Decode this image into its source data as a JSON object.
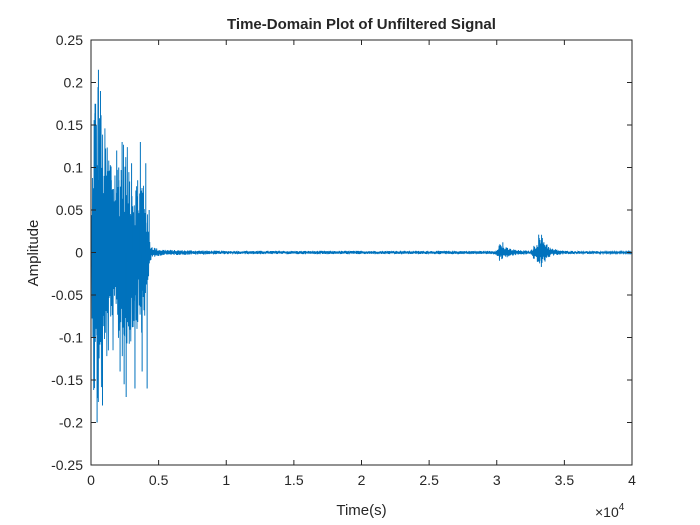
{
  "chart_data": {
    "type": "line",
    "title": "Time-Domain Plot of Unfiltered Signal",
    "xlabel": "Time(s)",
    "ylabel": "Amplitude",
    "xlim": [
      0,
      40000
    ],
    "ylim": [
      -0.25,
      0.25
    ],
    "x_exponent_label": "×10",
    "x_exponent_power": "4",
    "xtick_values": [
      0,
      5000,
      10000,
      15000,
      20000,
      25000,
      30000,
      35000,
      40000
    ],
    "xtick_labels": [
      "0",
      "0.5",
      "1",
      "1.5",
      "2",
      "2.5",
      "3",
      "3.5",
      "4"
    ],
    "ytick_values": [
      -0.25,
      -0.2,
      -0.15,
      -0.1,
      -0.05,
      0,
      0.05,
      0.1,
      0.15,
      0.2,
      0.25
    ],
    "ytick_labels": [
      "-0.25",
      "-0.2",
      "-0.15",
      "-0.1",
      "-0.05",
      "0",
      "0.05",
      "0.1",
      "0.15",
      "0.2",
      "0.25"
    ],
    "grid": false,
    "line_color": "#0072BD",
    "envelope": {
      "x": [
        0,
        200,
        500,
        800,
        1200,
        1600,
        2000,
        2400,
        2800,
        3200,
        3600,
        3900,
        4200,
        4400,
        4600,
        5000,
        6000,
        10000,
        20000,
        29900,
        30200,
        30700,
        31500,
        32500,
        32900,
        33300,
        34000,
        35000,
        40000
      ],
      "upper": [
        0.005,
        0.19,
        0.215,
        0.16,
        0.14,
        0.12,
        0.11,
        0.135,
        0.12,
        0.09,
        0.09,
        0.1,
        0.04,
        0.01,
        0.007,
        0.004,
        0.003,
        0.002,
        0.002,
        0.002,
        0.012,
        0.006,
        0.003,
        0.002,
        0.012,
        0.022,
        0.005,
        0.002,
        0.001
      ],
      "lower": [
        -0.005,
        -0.175,
        -0.2,
        -0.17,
        -0.13,
        -0.12,
        -0.11,
        -0.13,
        -0.12,
        -0.09,
        -0.09,
        -0.11,
        -0.04,
        -0.01,
        -0.007,
        -0.004,
        -0.003,
        -0.002,
        -0.002,
        -0.002,
        -0.01,
        -0.006,
        -0.003,
        -0.002,
        -0.012,
        -0.016,
        -0.004,
        -0.002,
        -0.001
      ]
    },
    "spikes": [
      {
        "x": 300,
        "y": 0.175
      },
      {
        "x": 450,
        "y": -0.2
      },
      {
        "x": 550,
        "y": 0.215
      },
      {
        "x": 700,
        "y": 0.19
      },
      {
        "x": 850,
        "y": -0.18
      },
      {
        "x": 1500,
        "y": 0.085
      },
      {
        "x": 1900,
        "y": 0.12
      },
      {
        "x": 2050,
        "y": 0.1
      },
      {
        "x": 2150,
        "y": -0.14
      },
      {
        "x": 2300,
        "y": 0.13
      },
      {
        "x": 2450,
        "y": -0.155
      },
      {
        "x": 2600,
        "y": -0.17
      },
      {
        "x": 3000,
        "y": 0.105
      },
      {
        "x": 3250,
        "y": -0.16
      },
      {
        "x": 3450,
        "y": 0.085
      },
      {
        "x": 3650,
        "y": 0.13
      },
      {
        "x": 3780,
        "y": -0.14
      },
      {
        "x": 4050,
        "y": 0.105
      },
      {
        "x": 4150,
        "y": -0.16
      },
      {
        "x": 4300,
        "y": 0.05
      },
      {
        "x": 30450,
        "y": 0.012
      },
      {
        "x": 33100,
        "y": 0.021
      },
      {
        "x": 33300,
        "y": -0.017
      }
    ]
  }
}
